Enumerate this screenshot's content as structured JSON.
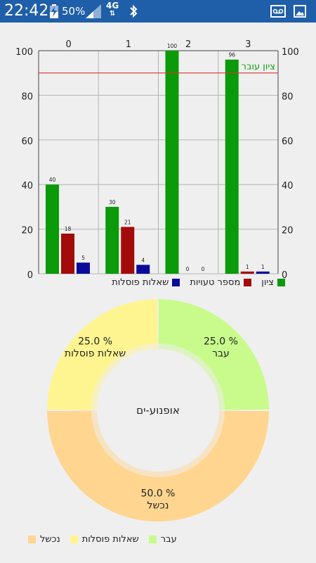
{
  "status_bar": {
    "time": "22:42",
    "battery": "50%",
    "network": "4G",
    "icons": [
      "battery-charging-icon",
      "signal-icon",
      "bluetooth-icon",
      "voicemail-icon",
      "image-icon"
    ]
  },
  "chart_data": [
    {
      "type": "bar",
      "categories": [
        "0",
        "1",
        "2",
        "3"
      ],
      "series": [
        {
          "name": "ציון",
          "color": "#0a9a0a",
          "values": [
            40,
            30,
            100,
            96
          ]
        },
        {
          "name": "מספר טעויות",
          "color": "#a30b0b",
          "values": [
            18,
            21,
            0,
            1
          ]
        },
        {
          "name": "שאלות פוסלות",
          "color": "#0a0a9a",
          "values": [
            5,
            4,
            0,
            1
          ]
        }
      ],
      "ylim": [
        0,
        100
      ],
      "yticks": [
        0,
        20,
        40,
        60,
        80,
        100
      ],
      "threshold": {
        "value": 90,
        "label": "ציון עובר",
        "color": "#e03030"
      },
      "grid": true,
      "legend_position": "bottom-right"
    },
    {
      "type": "pie",
      "center_label": "אופנוע-ים",
      "slices": [
        {
          "name": "נכשל",
          "percent": 50.0,
          "percent_text": "50.0 %",
          "color": "#ffd590"
        },
        {
          "name": "שאלות פוסלות",
          "percent": 25.0,
          "percent_text": "25.0 %",
          "color": "#fff590"
        },
        {
          "name": "עבר",
          "percent": 25.0,
          "percent_text": "25.0 %",
          "color": "#c8fb8c"
        }
      ],
      "legend_position": "bottom-left"
    }
  ]
}
